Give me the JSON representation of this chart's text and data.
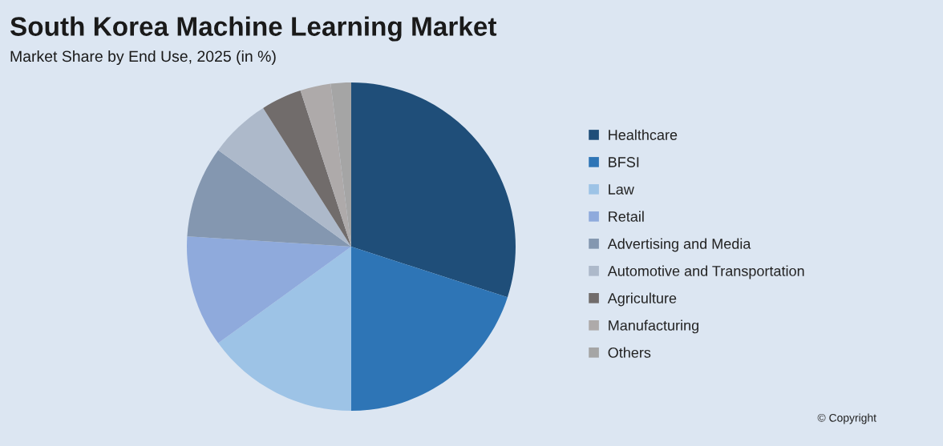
{
  "chart_data": {
    "type": "pie",
    "title": "South Korea Machine Learning Market",
    "subtitle": "Market Share by End Use, 2025 (in %)",
    "categories": [
      "Healthcare",
      "BFSI",
      "Law",
      "Retail",
      "Advertising and Media",
      "Automotive and Transportation",
      "Agriculture",
      "Manufacturing",
      "Others"
    ],
    "values": [
      30,
      20,
      15,
      11,
      9,
      6,
      4,
      3,
      2
    ],
    "colors": [
      "#1f4e79",
      "#2e75b6",
      "#9dc3e6",
      "#8faadc",
      "#8497b0",
      "#adb9ca",
      "#716c6b",
      "#aeaaaa",
      "#a5a5a5"
    ],
    "legend": "right",
    "annotations": [
      "© Copyright"
    ]
  }
}
